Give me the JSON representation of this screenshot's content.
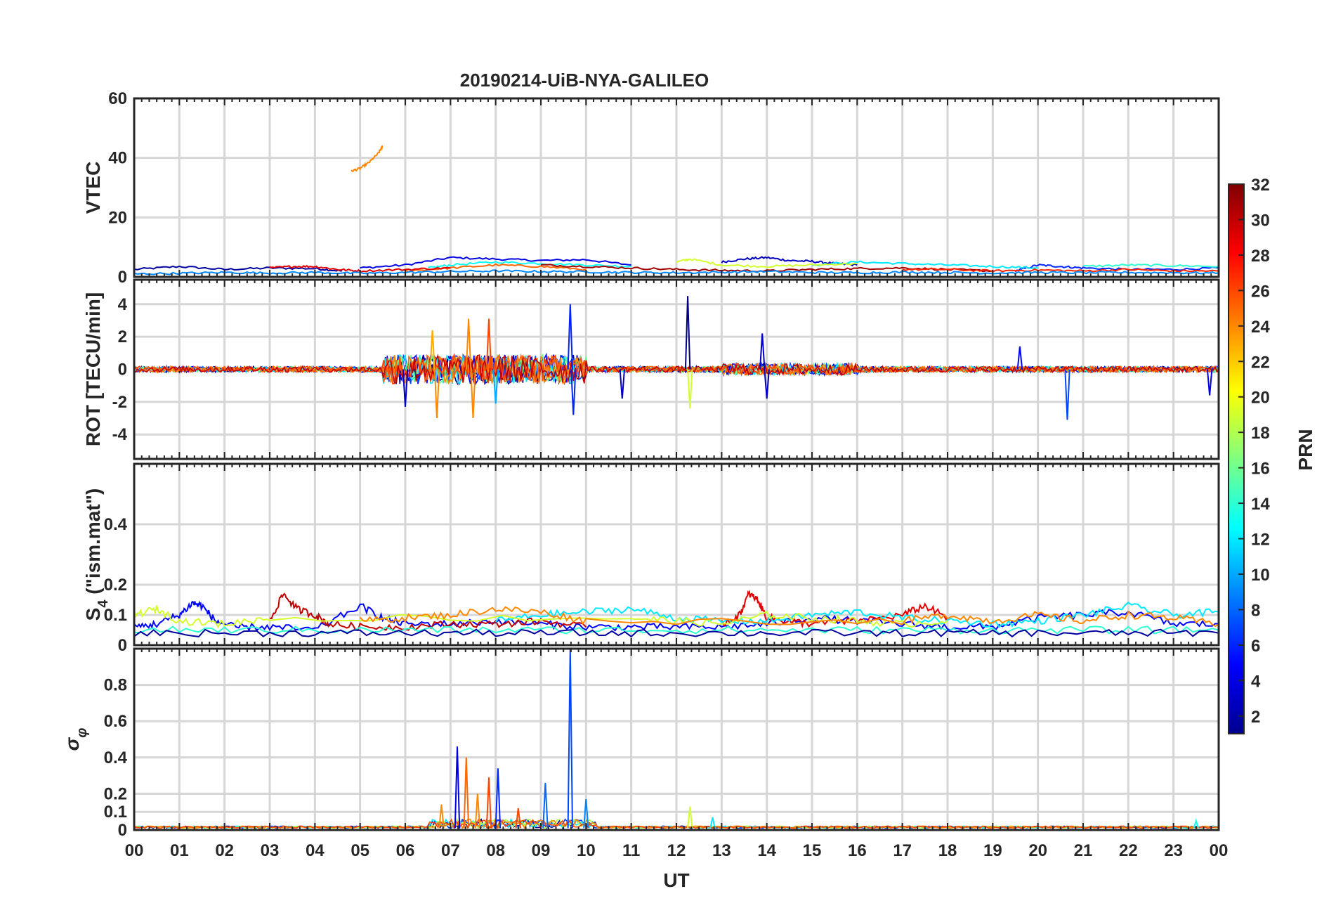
{
  "chart_data": {
    "type": "line",
    "title": "20190214-UiB-NYA-GALILEO",
    "xlabel": "UT",
    "x_tick_labels": [
      "00",
      "01",
      "02",
      "03",
      "04",
      "05",
      "06",
      "07",
      "08",
      "09",
      "10",
      "11",
      "12",
      "13",
      "14",
      "15",
      "16",
      "17",
      "18",
      "19",
      "20",
      "21",
      "22",
      "23",
      "00"
    ],
    "xlim": [
      0,
      24
    ],
    "grid": true,
    "colorbar": {
      "label": "PRN",
      "range": [
        1,
        32
      ],
      "colormap": "jet",
      "tick_labels": [
        "2",
        "4",
        "6",
        "8",
        "10",
        "12",
        "14",
        "16",
        "18",
        "20",
        "22",
        "24",
        "26",
        "28",
        "30",
        "32"
      ]
    },
    "panels": [
      {
        "id": "vtec",
        "ylabel": "VTEC",
        "ylim": [
          0,
          60
        ],
        "y_ticks": [
          0,
          20,
          40,
          60
        ],
        "y_tick_labels": [
          "0",
          "20",
          "40",
          "60"
        ],
        "description_level": "mostly 1–7 TECU; one arc near 40 TECU",
        "series": [
          {
            "prn": 2,
            "x": [
              0,
              1,
              2,
              3,
              4,
              4.6
            ],
            "y": [
              2.5,
              3.5,
              2.5,
              3,
              2.8,
              2
            ]
          },
          {
            "prn": 4,
            "x": [
              5,
              6,
              7,
              8,
              9,
              10,
              11
            ],
            "y": [
              3,
              4,
              6.5,
              6,
              5.5,
              5.8,
              4
            ]
          },
          {
            "prn": 3,
            "x": [
              13,
              13.5,
              14,
              14.5,
              15,
              15.5,
              16
            ],
            "y": [
              5,
              6,
              6.5,
              5.5,
              5.2,
              4.5,
              4
            ]
          },
          {
            "prn": 6,
            "x": [
              19.5,
              20,
              20.5,
              21,
              22,
              23,
              24
            ],
            "y": [
              2,
              4,
              3.5,
              3,
              2.5,
              2.5,
              3
            ]
          },
          {
            "prn": 13,
            "x": [
              6.5,
              7,
              8,
              9,
              10,
              11
            ],
            "y": [
              3,
              4,
              5,
              4.5,
              4,
              3.5
            ]
          },
          {
            "prn": 12,
            "x": [
              15,
              16,
              17,
              18,
              19,
              20
            ],
            "y": [
              4,
              5,
              4.5,
              4,
              3.5,
              3
            ]
          },
          {
            "prn": 19,
            "x": [
              12,
              12.3,
              13,
              14,
              15,
              16
            ],
            "y": [
              5,
              6,
              4,
              3.5,
              4,
              4.5
            ]
          },
          {
            "prn": 14,
            "x": [
              21,
              22,
              23,
              24
            ],
            "y": [
              3.5,
              4,
              3.8,
              3.5
            ]
          },
          {
            "prn": 24,
            "x": [
              4.8,
              5,
              5.2,
              5.4,
              5.5
            ],
            "y": [
              35.5,
              36.5,
              38.5,
              41.5,
              44
            ]
          },
          {
            "prn": 25,
            "x": [
              6,
              7,
              8,
              9,
              10
            ],
            "y": [
              2,
              3,
              4,
              3.5,
              2.5
            ]
          },
          {
            "prn": 29,
            "x": [
              3,
              3.5,
              4,
              4.5,
              5,
              6,
              7
            ],
            "y": [
              3,
              3.5,
              3.5,
              2.5,
              2,
              2.5,
              3
            ]
          },
          {
            "prn": 31,
            "x": [
              9,
              10,
              11,
              12,
              13,
              14,
              15,
              16,
              17,
              18,
              19
            ],
            "y": [
              4,
              3.5,
              3,
              2.5,
              2.2,
              2,
              2.5,
              2.8,
              3,
              2.5,
              2
            ]
          },
          {
            "prn": 27,
            "x": [
              17,
              18,
              19,
              20,
              21,
              22,
              23,
              24
            ],
            "y": [
              2.5,
              2.5,
              2,
              2.3,
              2,
              2.5,
              2,
              2
            ]
          },
          {
            "prn": 9,
            "x": [
              0,
              1,
              2,
              3,
              4,
              5,
              6,
              7,
              8,
              9,
              10,
              11,
              12,
              13,
              14,
              15,
              16,
              17,
              18,
              19,
              20,
              21,
              22,
              23,
              24
            ],
            "y": [
              1,
              1.2,
              1.5,
              1.3,
              1.5,
              1.2,
              1.5,
              1.8,
              2,
              1.8,
              1.7,
              1.5,
              1.4,
              1.6,
              1.8,
              1.5,
              1.4,
              1.6,
              1.5,
              1.3,
              1.5,
              1.4,
              1.5,
              1.4,
              1.3
            ]
          }
        ]
      },
      {
        "id": "rot",
        "ylabel": "ROT [TECU/min]",
        "ylim": [
          -5.5,
          5.5
        ],
        "y_ticks": [
          -4,
          -2,
          0,
          2,
          4
        ],
        "y_tick_labels": [
          "-4",
          "-2",
          "0",
          "2",
          "4"
        ],
        "spikes": [
          {
            "prn": 6,
            "x": 9.65,
            "y": 4.0
          },
          {
            "prn": 6,
            "x": 9.72,
            "y": -2.8
          },
          {
            "prn": 1,
            "x": 12.25,
            "y": 4.5
          },
          {
            "prn": 19,
            "x": 12.3,
            "y": -2.4
          },
          {
            "prn": 24,
            "x": 6.7,
            "y": -3.0
          },
          {
            "prn": 24,
            "x": 7.5,
            "y": -3.0
          },
          {
            "prn": 24,
            "x": 7.4,
            "y": 3.1
          },
          {
            "prn": 26,
            "x": 7.85,
            "y": 3.1
          },
          {
            "prn": 23,
            "x": 6.6,
            "y": 2.4
          },
          {
            "prn": 10,
            "x": 8.0,
            "y": -2.1
          },
          {
            "prn": 3,
            "x": 6.0,
            "y": -2.3
          },
          {
            "prn": 3,
            "x": 10.8,
            "y": -1.8
          },
          {
            "prn": 3,
            "x": 13.9,
            "y": 2.2
          },
          {
            "prn": 3,
            "x": 14.0,
            "y": -1.8
          },
          {
            "prn": 7,
            "x": 20.65,
            "y": -3.1
          },
          {
            "prn": 5,
            "x": 19.6,
            "y": 1.4
          },
          {
            "prn": 4,
            "x": 23.8,
            "y": -1.6
          }
        ]
      },
      {
        "id": "s4",
        "ylabel": "S4 (\"ism.mat\")",
        "ylabel_main": "S",
        "ylabel_sub": "4",
        "ylabel_rest": " (\"ism.mat\")",
        "ylim": [
          0,
          0.6
        ],
        "y_ticks": [
          0,
          0.1,
          0.2,
          0.4
        ],
        "y_tick_labels": [
          "0",
          "0.1",
          "0.2",
          "0.4"
        ],
        "series": [
          {
            "prn": 5,
            "x": [
              0,
              0.5,
              1,
              1.3,
              1.5,
              1.8,
              2.2,
              3,
              4,
              5,
              5.5,
              6,
              7,
              8,
              9,
              10,
              11,
              12,
              13,
              14,
              15,
              16,
              17,
              18,
              19,
              20,
              21,
              22,
              23,
              24
            ],
            "y": [
              0.06,
              0.07,
              0.1,
              0.14,
              0.13,
              0.08,
              0.06,
              0.06,
              0.05,
              0.13,
              0.09,
              0.07,
              0.07,
              0.08,
              0.07,
              0.06,
              0.06,
              0.06,
              0.06,
              0.07,
              0.09,
              0.08,
              0.07,
              0.06,
              0.06,
              0.09,
              0.1,
              0.11,
              0.07,
              0.07
            ]
          },
          {
            "prn": 30,
            "x": [
              3,
              3.3,
              3.6,
              4,
              4.3,
              5,
              6,
              7,
              8,
              9,
              10
            ],
            "y": [
              0.08,
              0.17,
              0.12,
              0.1,
              0.07,
              0.06,
              0.06,
              0.07,
              0.07,
              0.08,
              0.06
            ]
          },
          {
            "prn": 29,
            "x": [
              13,
              13.4,
              13.6,
              13.8,
              14,
              14.5,
              15,
              16,
              17,
              17.5,
              18
            ],
            "y": [
              0.07,
              0.1,
              0.17,
              0.15,
              0.09,
              0.08,
              0.07,
              0.08,
              0.1,
              0.13,
              0.09
            ]
          },
          {
            "prn": 12,
            "x": [
              8,
              9,
              10,
              11,
              12,
              13,
              14,
              15,
              16,
              17,
              18,
              19,
              20,
              21,
              22,
              23,
              24
            ],
            "y": [
              0.08,
              0.1,
              0.11,
              0.12,
              0.09,
              0.08,
              0.08,
              0.1,
              0.11,
              0.09,
              0.08,
              0.07,
              0.08,
              0.1,
              0.13,
              0.1,
              0.11
            ]
          },
          {
            "prn": 19,
            "x": [
              0,
              0.5,
              1,
              2,
              3,
              11,
              12,
              13,
              14,
              15,
              16,
              17,
              18
            ],
            "y": [
              0.1,
              0.12,
              0.08,
              0.07,
              0.09,
              0.09,
              0.08,
              0.07,
              0.1,
              0.09,
              0.08,
              0.07,
              0.08
            ]
          },
          {
            "prn": 24,
            "x": [
              5,
              6,
              7,
              8,
              9,
              10,
              17,
              18,
              19,
              20,
              21,
              22,
              23,
              24
            ],
            "y": [
              0.08,
              0.09,
              0.1,
              0.12,
              0.11,
              0.08,
              0.08,
              0.1,
              0.08,
              0.1,
              0.08,
              0.1,
              0.09,
              0.07
            ]
          },
          {
            "prn": 14,
            "x": [
              0,
              2,
              4,
              6,
              8,
              10,
              12,
              14,
              16,
              18,
              20,
              22,
              24
            ],
            "y": [
              0.05,
              0.05,
              0.05,
              0.05,
              0.05,
              0.05,
              0.05,
              0.05,
              0.05,
              0.05,
              0.05,
              0.05,
              0.05
            ]
          },
          {
            "prn": 2,
            "x": [
              0,
              2,
              4,
              6,
              8,
              10,
              12,
              14,
              16,
              18,
              20,
              22,
              24
            ],
            "y": [
              0.04,
              0.04,
              0.04,
              0.04,
              0.04,
              0.04,
              0.04,
              0.04,
              0.04,
              0.04,
              0.04,
              0.04,
              0.04
            ]
          }
        ]
      },
      {
        "id": "sigma_phi",
        "ylabel": "σφ",
        "ylabel_main": "σ",
        "ylabel_sub": "φ",
        "ylim": [
          0,
          1.0
        ],
        "y_ticks": [
          0,
          0.1,
          0.2,
          0.4,
          0.6,
          0.8
        ],
        "y_tick_labels": [
          "0",
          "0.1",
          "0.2",
          "0.4",
          "0.6",
          "0.8"
        ],
        "spikes": [
          {
            "prn": 7,
            "x": 9.65,
            "y": 1.0
          },
          {
            "prn": 4,
            "x": 7.15,
            "y": 0.46
          },
          {
            "prn": 25,
            "x": 7.35,
            "y": 0.4
          },
          {
            "prn": 24,
            "x": 7.6,
            "y": 0.2
          },
          {
            "prn": 26,
            "x": 7.85,
            "y": 0.29
          },
          {
            "prn": 6,
            "x": 8.05,
            "y": 0.34
          },
          {
            "prn": 8,
            "x": 9.1,
            "y": 0.26
          },
          {
            "prn": 24,
            "x": 6.8,
            "y": 0.14
          },
          {
            "prn": 26,
            "x": 8.5,
            "y": 0.12
          },
          {
            "prn": 9,
            "x": 10.0,
            "y": 0.17
          },
          {
            "prn": 19,
            "x": 12.3,
            "y": 0.13
          },
          {
            "prn": 12,
            "x": 12.8,
            "y": 0.07
          },
          {
            "prn": 13,
            "x": 23.5,
            "y": 0.05
          }
        ]
      }
    ]
  }
}
